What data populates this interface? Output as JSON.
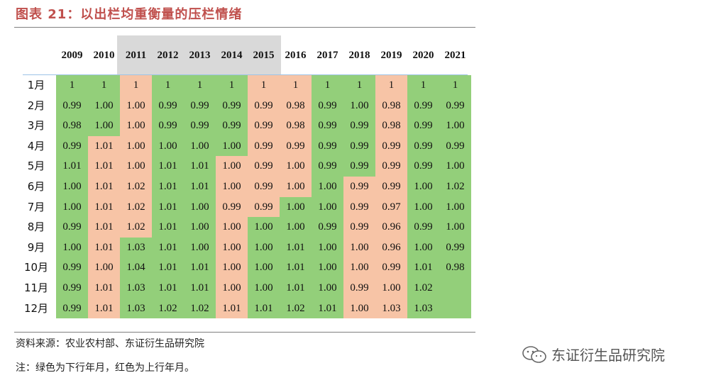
{
  "title": "图表 21：以出栏均重衡量的压栏情绪",
  "years": [
    "2009",
    "2010",
    "2011",
    "2012",
    "2013",
    "2014",
    "2015",
    "2016",
    "2017",
    "2018",
    "2019",
    "2020",
    "2021"
  ],
  "highlighted_years": [
    "2010",
    "2011",
    "2012",
    "2013",
    "2014"
  ],
  "months": [
    "1月",
    "2月",
    "3月",
    "4月",
    "5月",
    "6月",
    "7月",
    "8月",
    "9月",
    "10月",
    "11月",
    "12月"
  ],
  "colors": {
    "green": "#93cf7a",
    "red": "#f7c4a6",
    "gray_header": "#d9d9d9",
    "title": "#c0504d"
  },
  "rows": [
    {
      "values": [
        "1",
        "1",
        "1",
        "1",
        "1",
        "1",
        "1",
        "1",
        "1",
        "1",
        "1",
        "1",
        "1"
      ],
      "colors": [
        "g",
        "g",
        "r",
        "g",
        "g",
        "g",
        "r",
        "r",
        "g",
        "g",
        "r",
        "g",
        "g"
      ]
    },
    {
      "values": [
        "0.99",
        "1.00",
        "1.00",
        "0.99",
        "0.99",
        "0.99",
        "0.99",
        "0.98",
        "0.99",
        "1.00",
        "0.98",
        "0.99",
        "0.99"
      ],
      "colors": [
        "g",
        "g",
        "r",
        "g",
        "g",
        "g",
        "r",
        "r",
        "g",
        "g",
        "r",
        "g",
        "g"
      ]
    },
    {
      "values": [
        "0.98",
        "1.00",
        "1.00",
        "0.99",
        "0.99",
        "0.99",
        "0.99",
        "0.98",
        "0.99",
        "0.99",
        "0.98",
        "0.99",
        "1.00"
      ],
      "colors": [
        "g",
        "g",
        "r",
        "g",
        "g",
        "g",
        "r",
        "r",
        "g",
        "g",
        "r",
        "g",
        "g"
      ]
    },
    {
      "values": [
        "0.99",
        "1.01",
        "1.00",
        "1.00",
        "1.00",
        "1.00",
        "0.99",
        "0.99",
        "0.99",
        "0.99",
        "0.99",
        "0.99",
        "0.99"
      ],
      "colors": [
        "g",
        "r",
        "r",
        "g",
        "g",
        "g",
        "r",
        "r",
        "g",
        "g",
        "r",
        "g",
        "g"
      ]
    },
    {
      "values": [
        "1.01",
        "1.01",
        "1.00",
        "1.01",
        "1.01",
        "1.00",
        "0.99",
        "1.00",
        "0.99",
        "0.99",
        "0.99",
        "0.99",
        "1.00"
      ],
      "colors": [
        "g",
        "r",
        "r",
        "g",
        "g",
        "r",
        "r",
        "r",
        "g",
        "g",
        "r",
        "g",
        "g"
      ]
    },
    {
      "values": [
        "1.00",
        "1.01",
        "1.02",
        "1.01",
        "1.01",
        "1.00",
        "0.99",
        "1.00",
        "1.00",
        "0.99",
        "0.99",
        "1.00",
        "1.02"
      ],
      "colors": [
        "g",
        "r",
        "r",
        "g",
        "g",
        "r",
        "r",
        "r",
        "g",
        "r",
        "r",
        "g",
        "g"
      ]
    },
    {
      "values": [
        "1.00",
        "1.01",
        "1.02",
        "1.01",
        "1.00",
        "0.99",
        "0.99",
        "1.00",
        "1.00",
        "0.99",
        "0.97",
        "1.00",
        "1.00"
      ],
      "colors": [
        "g",
        "r",
        "r",
        "g",
        "g",
        "r",
        "r",
        "g",
        "g",
        "r",
        "r",
        "g",
        "g"
      ]
    },
    {
      "values": [
        "0.99",
        "1.01",
        "1.02",
        "1.01",
        "1.00",
        "1.00",
        "1.00",
        "1.00",
        "0.99",
        "0.99",
        "0.96",
        "0.99",
        "1.00"
      ],
      "colors": [
        "g",
        "r",
        "r",
        "g",
        "g",
        "r",
        "g",
        "g",
        "g",
        "r",
        "r",
        "g",
        "g"
      ]
    },
    {
      "values": [
        "1.00",
        "1.01",
        "1.03",
        "1.01",
        "1.00",
        "1.00",
        "1.00",
        "1.01",
        "1.00",
        "1.00",
        "0.96",
        "1.00",
        "0.99"
      ],
      "colors": [
        "g",
        "r",
        "g",
        "g",
        "g",
        "r",
        "g",
        "g",
        "g",
        "r",
        "r",
        "g",
        "g"
      ]
    },
    {
      "values": [
        "0.99",
        "1.00",
        "1.04",
        "1.01",
        "1.01",
        "1.00",
        "1.00",
        "1.01",
        "1.00",
        "1.00",
        "0.99",
        "1.01",
        "0.98"
      ],
      "colors": [
        "g",
        "r",
        "g",
        "g",
        "g",
        "r",
        "g",
        "g",
        "g",
        "r",
        "r",
        "g",
        "g"
      ]
    },
    {
      "values": [
        "0.99",
        "1.01",
        "1.03",
        "1.01",
        "1.01",
        "1.00",
        "1.00",
        "1.01",
        "1.00",
        "0.99",
        "1.00",
        "1.02",
        ""
      ],
      "colors": [
        "g",
        "r",
        "g",
        "g",
        "g",
        "r",
        "g",
        "g",
        "g",
        "r",
        "r",
        "g",
        "g"
      ]
    },
    {
      "values": [
        "0.99",
        "1.01",
        "1.03",
        "1.02",
        "1.02",
        "1.01",
        "1.01",
        "1.02",
        "1.01",
        "1.00",
        "1.03",
        "1.03",
        ""
      ],
      "colors": [
        "g",
        "r",
        "g",
        "g",
        "g",
        "r",
        "g",
        "g",
        "g",
        "r",
        "r",
        "g",
        "g"
      ]
    }
  ],
  "source": "资料来源：农业农村部、东证衍生品研究院",
  "note": "注：绿色为下行年月，红色为上行年月。",
  "brand": "东证衍生品研究院",
  "brand_icon": "wechat-icon"
}
